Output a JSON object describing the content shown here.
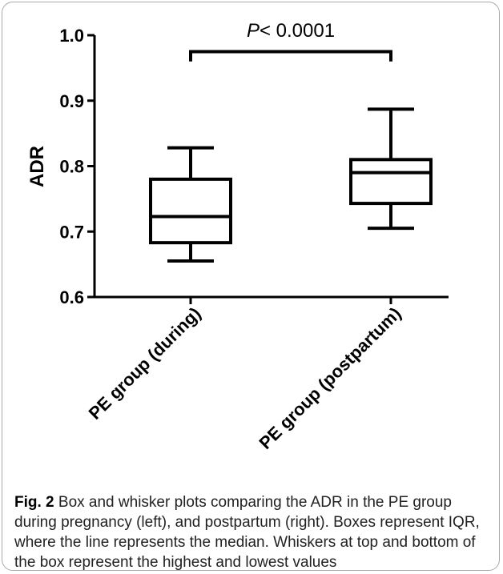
{
  "chart_data": {
    "type": "box",
    "ylabel": "ADR",
    "ylim": [
      0.6,
      1.0
    ],
    "yticks": [
      0.6,
      0.7,
      0.8,
      0.9,
      1.0
    ],
    "ytick_labels": [
      "0.6",
      "0.7",
      "0.8",
      "0.9",
      "1.0"
    ],
    "categories": [
      "PE group (during)",
      "PE group (postpartum)"
    ],
    "boxes": [
      {
        "category": "PE group (during)",
        "min": 0.655,
        "q1": 0.683,
        "median": 0.723,
        "q3": 0.78,
        "max": 0.828
      },
      {
        "category": "PE group (postpartum)",
        "min": 0.705,
        "q1": 0.743,
        "median": 0.79,
        "q3": 0.81,
        "max": 0.887
      }
    ],
    "annotation": {
      "p_prefix": "P",
      "p_text": "< 0.0001",
      "bracket_y": 0.96,
      "bracket_top": 0.975
    }
  },
  "caption": {
    "label": "Fig. 2",
    "text": " Box and whisker plots comparing the ADR in the PE group during pregnancy (left), and postpartum (right). Boxes represent IQR, where the line represents the median. Whiskers at top and bottom of the box represent the highest and lowest values"
  }
}
